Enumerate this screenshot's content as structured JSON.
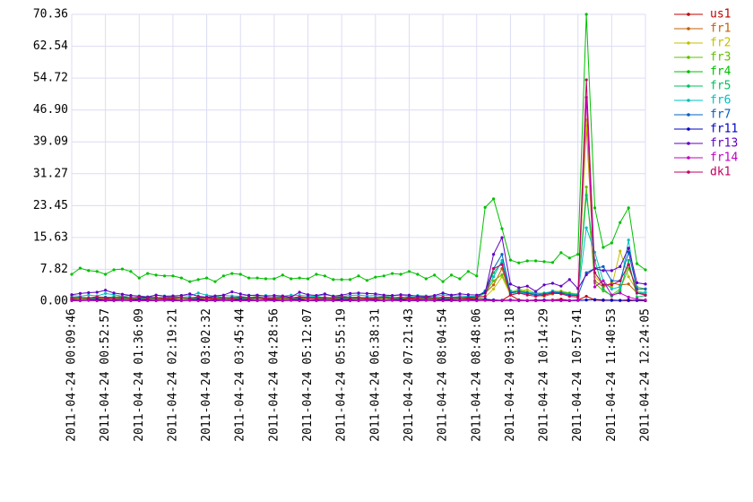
{
  "chart_data": {
    "type": "line",
    "categories": [
      "2011-04-24 00:09:46",
      null,
      null,
      null,
      "2011-04-24 00:52:57",
      null,
      null,
      null,
      "2011-04-24 01:36:09",
      null,
      null,
      null,
      "2011-04-24 02:19:21",
      null,
      null,
      null,
      "2011-04-24 03:02:32",
      null,
      null,
      null,
      "2011-04-24 03:45:44",
      null,
      null,
      null,
      "2011-04-24 04:28:56",
      null,
      null,
      null,
      "2011-04-24 05:12:07",
      null,
      null,
      null,
      "2011-04-24 05:55:19",
      null,
      null,
      null,
      "2011-04-24 06:38:31",
      null,
      null,
      null,
      "2011-04-24 07:21:43",
      null,
      null,
      null,
      "2011-04-24 08:04:54",
      null,
      null,
      null,
      "2011-04-24 08:48:06",
      null,
      null,
      null,
      "2011-04-24 09:31:18",
      null,
      null,
      null,
      "2011-04-24 10:14:29",
      null,
      null,
      null,
      "2011-04-24 10:57:41",
      null,
      null,
      null,
      "2011-04-24 11:40:53",
      null,
      null,
      null,
      "2011-04-24 12:24:05"
    ],
    "ylim": [
      0,
      70.36
    ],
    "yticks": [
      {
        "value": 0,
        "label": "0.00"
      },
      7.82,
      15.63,
      23.45,
      31.27,
      39.09,
      {
        "value": 46.9,
        "label": "46.90"
      },
      54.72,
      62.54,
      70.36
    ],
    "grid": true,
    "series": [
      {
        "name": "us1",
        "color": "#c00000",
        "values": [
          0.4,
          0.5,
          0.6,
          0.4,
          0.5,
          0.7,
          0.5,
          0.4,
          0.6,
          0.5,
          0.4,
          0.6,
          0.5,
          0.7,
          0.6,
          0.5,
          0.4,
          0.6,
          0.5,
          0.4,
          0.5,
          0.6,
          0.7,
          0.5,
          0.4,
          0.5,
          0.6,
          0.5,
          0.7,
          0.6,
          0.5,
          0.4,
          0.6,
          0.5,
          0.4,
          0.6,
          0.5,
          0.7,
          0.5,
          0.4,
          0.6,
          0.5,
          0.4,
          0.5,
          0.6,
          0.5,
          0.4,
          0.5,
          0.6,
          0.3,
          0.1,
          0.2,
          1.5,
          0.3,
          0.2,
          0.3,
          0.2,
          0.3,
          0.5,
          0.2,
          0.3,
          1.2,
          0.3,
          0.2,
          0.3,
          0.2,
          0.1,
          0.2,
          0.1
        ]
      },
      {
        "name": "fr1",
        "color": "#c06000",
        "values": [
          1.0,
          0.9,
          0.8,
          1.1,
          0.9,
          1.0,
          1.2,
          0.8,
          0.9,
          1.0,
          0.8,
          0.9,
          1.1,
          0.9,
          0.8,
          1.0,
          0.9,
          1.2,
          0.8,
          0.9,
          1.0,
          0.9,
          1.1,
          0.8,
          0.9,
          1.0,
          0.8,
          1.1,
          0.9,
          1.0,
          0.8,
          0.9,
          1.2,
          0.9,
          1.0,
          0.8,
          0.9,
          1.1,
          0.9,
          0.8,
          1.0,
          0.9,
          1.1,
          0.8,
          0.9,
          1.0,
          0.9,
          1.0,
          1.0,
          2.0,
          4.0,
          8.0,
          1.5,
          2.0,
          1.8,
          1.5,
          1.2,
          1.8,
          2.0,
          1.5,
          1.3,
          43.0,
          5.0,
          3.5,
          4.5,
          4.0,
          4.2,
          2.0,
          1.8
        ]
      },
      {
        "name": "fr2",
        "color": "#c0c000",
        "values": [
          0.3,
          0.4,
          0.3,
          0.2,
          0.3,
          0.4,
          0.3,
          0.3,
          0.2,
          0.4,
          0.3,
          0.3,
          0.3,
          0.4,
          0.3,
          0.2,
          0.3,
          0.4,
          0.3,
          0.3,
          0.2,
          0.4,
          0.3,
          0.3,
          0.3,
          0.4,
          0.3,
          0.2,
          0.3,
          0.4,
          0.3,
          0.3,
          0.2,
          0.4,
          0.3,
          0.3,
          0.3,
          0.4,
          0.3,
          0.2,
          0.3,
          0.4,
          0.3,
          0.3,
          0.2,
          0.4,
          0.3,
          0.3,
          0.5,
          1.0,
          3.0,
          6.0,
          1.5,
          2.5,
          2.8,
          2.0,
          1.5,
          2.2,
          2.5,
          2.0,
          1.8,
          44.5,
          6.0,
          4.0,
          3.5,
          12.3,
          6.0,
          2.5,
          2.0
        ]
      },
      {
        "name": "fr3",
        "color": "#60c000",
        "values": [
          0.6,
          0.7,
          0.5,
          0.6,
          0.8,
          0.6,
          0.5,
          0.7,
          0.6,
          0.5,
          0.6,
          0.7,
          0.6,
          0.7,
          0.5,
          0.6,
          0.8,
          0.6,
          0.5,
          0.7,
          0.6,
          0.5,
          0.6,
          0.7,
          0.6,
          0.7,
          0.5,
          0.6,
          0.8,
          0.6,
          0.5,
          0.7,
          0.6,
          0.5,
          0.6,
          0.7,
          0.6,
          0.7,
          0.5,
          0.6,
          0.8,
          0.6,
          0.5,
          0.7,
          0.6,
          0.5,
          0.6,
          0.7,
          0.8,
          2.0,
          5.0,
          6.5,
          2.0,
          3.0,
          2.2,
          2.0,
          1.8,
          2.5,
          2.3,
          2.0,
          1.5,
          28.0,
          4.5,
          2.5,
          1.5,
          3.0,
          8.0,
          3.5,
          3.0
        ]
      },
      {
        "name": "fr4",
        "color": "#00c000",
        "values": [
          6.6,
          8.1,
          7.5,
          7.3,
          6.6,
          7.7,
          7.9,
          7.3,
          5.7,
          6.8,
          6.4,
          6.2,
          6.2,
          5.7,
          4.8,
          5.3,
          5.7,
          4.8,
          6.2,
          6.8,
          6.6,
          5.7,
          5.7,
          5.5,
          5.5,
          6.4,
          5.5,
          5.7,
          5.5,
          6.6,
          6.2,
          5.3,
          5.3,
          5.3,
          6.2,
          5.1,
          5.9,
          6.2,
          6.8,
          6.6,
          7.3,
          6.6,
          5.5,
          6.4,
          4.8,
          6.4,
          5.5,
          7.3,
          6.2,
          23.0,
          25.1,
          17.8,
          10.1,
          9.4,
          9.9,
          9.9,
          9.7,
          9.5,
          11.9,
          10.6,
          11.5,
          70.36,
          22.9,
          13.2,
          14.3,
          19.3,
          22.9,
          9.2,
          7.7
        ]
      },
      {
        "name": "fr5",
        "color": "#00c060",
        "values": [
          0.8,
          1.0,
          0.7,
          0.9,
          0.8,
          1.1,
          0.9,
          0.7,
          0.8,
          1.0,
          0.9,
          0.8,
          0.8,
          1.0,
          0.7,
          0.9,
          0.8,
          1.1,
          0.9,
          0.7,
          0.8,
          1.0,
          0.9,
          0.8,
          0.8,
          1.0,
          0.7,
          0.9,
          0.8,
          1.1,
          0.9,
          0.7,
          0.8,
          1.0,
          0.9,
          0.8,
          0.8,
          1.0,
          0.7,
          0.9,
          0.8,
          1.1,
          0.9,
          0.7,
          0.8,
          1.0,
          0.9,
          0.8,
          1.0,
          2.5,
          7.0,
          9.5,
          2.5,
          2.2,
          2.0,
          1.8,
          2.0,
          2.4,
          2.2,
          1.8,
          1.6,
          26.0,
          10.0,
          3.0,
          1.2,
          2.5,
          10.0,
          1.0,
          1.4
        ]
      },
      {
        "name": "fr6",
        "color": "#00c0c0",
        "values": [
          1.4,
          1.2,
          1.5,
          1.3,
          1.9,
          1.6,
          1.2,
          1.4,
          1.3,
          1.1,
          1.5,
          1.3,
          1.2,
          1.4,
          1.3,
          2.0,
          1.5,
          1.2,
          1.4,
          1.3,
          1.2,
          1.5,
          1.3,
          1.4,
          1.3,
          1.2,
          1.5,
          1.4,
          1.3,
          1.2,
          1.6,
          1.3,
          1.2,
          1.4,
          1.5,
          1.3,
          1.4,
          1.2,
          1.3,
          1.5,
          1.2,
          1.4,
          1.3,
          1.2,
          1.5,
          1.4,
          1.3,
          1.2,
          1.2,
          2.0,
          6.0,
          10.0,
          2.0,
          2.3,
          2.2,
          2.0,
          1.8,
          2.5,
          2.0,
          1.6,
          1.5,
          18.0,
          12.0,
          5.0,
          3.0,
          3.5,
          15.0,
          2.0,
          2.2
        ]
      },
      {
        "name": "fr7",
        "color": "#0060c0",
        "values": [
          0.8,
          0.9,
          0.7,
          0.8,
          1.0,
          0.8,
          0.7,
          0.9,
          0.8,
          0.7,
          0.8,
          0.9,
          0.8,
          0.9,
          0.7,
          0.8,
          1.0,
          0.8,
          0.7,
          0.9,
          0.8,
          0.7,
          0.8,
          0.9,
          0.8,
          0.9,
          0.7,
          0.8,
          1.0,
          0.8,
          0.7,
          0.9,
          0.8,
          0.7,
          0.8,
          0.9,
          0.8,
          0.9,
          0.7,
          0.8,
          1.0,
          0.8,
          0.7,
          0.9,
          0.8,
          0.7,
          0.8,
          0.9,
          1.0,
          2.5,
          8.0,
          11.5,
          2.0,
          2.5,
          2.0,
          1.5,
          1.8,
          2.2,
          2.0,
          1.5,
          1.4,
          7.0,
          8.0,
          8.5,
          5.0,
          5.0,
          12.0,
          3.0,
          3.0
        ]
      },
      {
        "name": "fr11",
        "color": "#0000c0",
        "values": [
          0.3,
          0.2,
          0.3,
          0.4,
          0.2,
          0.3,
          0.3,
          0.2,
          0.4,
          0.3,
          0.2,
          0.3,
          0.3,
          0.2,
          0.3,
          0.4,
          0.2,
          0.3,
          0.3,
          0.2,
          0.4,
          0.3,
          0.2,
          0.3,
          0.3,
          0.2,
          0.3,
          0.4,
          0.2,
          0.3,
          0.3,
          0.2,
          0.4,
          0.3,
          0.2,
          0.3,
          0.3,
          0.2,
          0.3,
          0.4,
          0.2,
          0.3,
          0.3,
          0.2,
          0.4,
          0.3,
          0.2,
          0.3,
          0.4,
          0.5,
          0.3,
          0.2,
          0.3,
          0.2,
          0.1,
          0.2,
          0.3,
          0.2,
          0.2,
          0.1,
          0.2,
          0.3,
          0.4,
          0.3,
          0.2,
          0.2,
          0.3,
          0.2,
          0.2
        ]
      },
      {
        "name": "fr13",
        "color": "#6000c0",
        "values": [
          1.6,
          1.9,
          2.1,
          2.2,
          2.7,
          2.0,
          1.7,
          1.4,
          1.2,
          1.0,
          1.5,
          1.2,
          1.3,
          1.4,
          1.8,
          1.2,
          1.0,
          1.3,
          1.5,
          2.3,
          1.8,
          1.4,
          1.5,
          1.2,
          1.4,
          1.3,
          1.0,
          2.2,
          1.6,
          1.4,
          1.8,
          1.2,
          1.5,
          1.9,
          2.0,
          1.9,
          1.8,
          1.5,
          1.4,
          1.6,
          1.5,
          1.2,
          1.1,
          1.4,
          2.0,
          1.5,
          1.8,
          1.6,
          1.5,
          2.0,
          11.5,
          15.6,
          4.2,
          3.3,
          3.7,
          2.4,
          4.0,
          4.4,
          3.7,
          5.3,
          3.1,
          6.5,
          8.0,
          7.5,
          7.5,
          8.5,
          13.0,
          4.5,
          4.2
        ]
      },
      {
        "name": "fr14",
        "color": "#c000c0",
        "values": [
          0.1,
          0.1,
          0.2,
          0.1,
          0.1,
          0.1,
          0.2,
          0.1,
          0.1,
          0.1,
          0.1,
          0.2,
          0.1,
          0.1,
          0.2,
          0.1,
          0.1,
          0.1,
          0.2,
          0.1,
          0.1,
          0.1,
          0.1,
          0.2,
          0.1,
          0.1,
          0.2,
          0.1,
          0.1,
          0.1,
          0.2,
          0.1,
          0.1,
          0.1,
          0.1,
          0.2,
          0.1,
          0.1,
          0.2,
          0.1,
          0.1,
          0.1,
          0.2,
          0.1,
          0.1,
          0.1,
          0.1,
          0.2,
          0.1,
          0.2,
          0.1,
          0.1,
          0.2,
          0.1,
          0.2,
          0.1,
          0.1,
          0.2,
          0.1,
          0.2,
          0.3,
          50.0,
          3.5,
          5.0,
          1.5,
          2.0,
          1.0,
          0.5,
          0.3
        ]
      },
      {
        "name": "dk1",
        "color": "#c00060",
        "values": [
          0.8,
          0.9,
          0.8,
          1.0,
          0.8,
          0.7,
          0.9,
          0.8,
          1.0,
          0.8,
          0.9,
          0.7,
          0.8,
          0.9,
          0.8,
          1.0,
          0.8,
          0.7,
          0.9,
          0.8,
          1.0,
          0.8,
          0.9,
          0.7,
          0.8,
          0.9,
          0.8,
          1.0,
          0.8,
          0.7,
          0.9,
          0.8,
          1.0,
          0.8,
          0.9,
          0.7,
          0.8,
          0.9,
          0.8,
          1.0,
          0.8,
          0.7,
          0.9,
          0.8,
          1.0,
          0.8,
          0.9,
          0.7,
          1.0,
          1.2,
          8.0,
          9.0,
          1.5,
          2.0,
          1.5,
          1.2,
          1.5,
          2.0,
          1.8,
          1.2,
          1.0,
          54.3,
          7.0,
          4.0,
          4.0,
          5.0,
          9.0,
          2.0,
          1.5
        ]
      }
    ]
  }
}
